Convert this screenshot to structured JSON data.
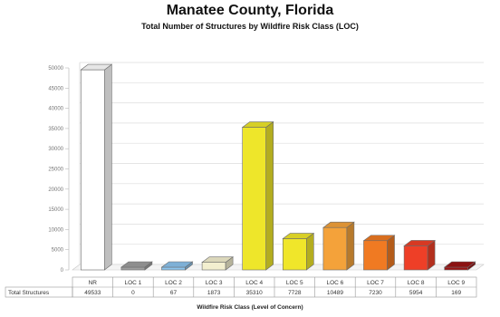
{
  "chart_data": {
    "type": "bar",
    "title": "Manatee County, Florida",
    "subtitle": "Total Number of Structures by Wildfire Risk Class (LOC)",
    "xlabel": "Wildfire Risk Class (Level of Concern)",
    "ylabel": "",
    "ylim": [
      0,
      50000
    ],
    "yticks": [
      "0",
      "5000",
      "10000",
      "15000",
      "20000",
      "25000",
      "30000",
      "35000",
      "40000",
      "45000",
      "50000"
    ],
    "categories": [
      "NR",
      "LOC 1",
      "LOC 2",
      "LOC 3",
      "LOC 4",
      "LOC 5",
      "LOC 6",
      "LOC 7",
      "LOC 8",
      "LOC 9"
    ],
    "series": [
      {
        "name": "Total Structures",
        "values": [
          49533,
          0,
          67,
          1873,
          35310,
          7728,
          10489,
          7230,
          5954,
          169
        ],
        "labels": [
          "49533",
          "0",
          "67",
          "1873",
          "35310",
          "7728",
          "10489",
          "7230",
          "5954",
          "169"
        ]
      }
    ],
    "colors": [
      "#ffffff",
      "#9e9e9e",
      "#8cc4ee",
      "#f3efcf",
      "#eee62a",
      "#f0e62a",
      "#f4a23a",
      "#f07a22",
      "#ee3f27",
      "#9a1414"
    ],
    "grid": true,
    "legend": "none",
    "data_table": true
  }
}
